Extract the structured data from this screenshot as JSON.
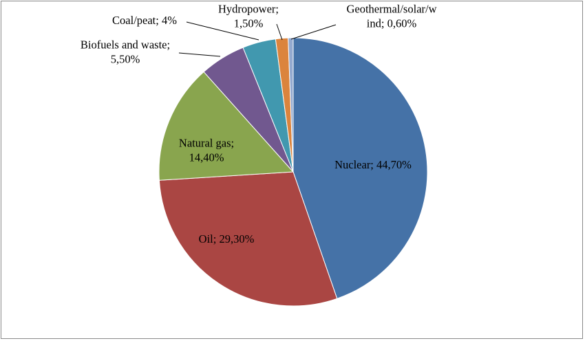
{
  "chart_data": {
    "type": "pie",
    "title": "",
    "categories": [
      "Nuclear",
      "Oil",
      "Natural gas",
      "Biofuels and waste",
      "Coal/peat",
      "Hydropower",
      "Geothermal/solar/wind"
    ],
    "values": [
      44.7,
      29.3,
      14.4,
      5.5,
      4.0,
      1.5,
      0.6
    ],
    "colors": [
      "#4572a7",
      "#aa4643",
      "#89a54e",
      "#71588f",
      "#4198af",
      "#db843d",
      "#93a9cf"
    ],
    "legend": "none",
    "labels": [
      [
        "Nuclear; 44,70%"
      ],
      [
        "Oil; 29,30%"
      ],
      [
        "Natural gas;",
        "14,40%"
      ],
      [
        "Biofuels and waste;",
        "5,50%"
      ],
      [
        "Coal/peat; 4%"
      ],
      [
        "Hydropower;",
        "1,50%"
      ],
      [
        "Geothermal/solar/w",
        "ind; 0,60%"
      ]
    ]
  }
}
